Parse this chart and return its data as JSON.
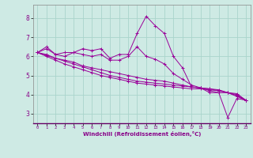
{
  "xlabel": "Windchill (Refroidissement éolien,°C)",
  "bg_color": "#ceeae4",
  "grid_color": "#aad4cc",
  "line_color": "#990099",
  "xlim": [
    -0.5,
    23.5
  ],
  "ylim": [
    2.5,
    8.7
  ],
  "yticks": [
    3,
    4,
    5,
    6,
    7,
    8
  ],
  "xticks": [
    0,
    1,
    2,
    3,
    4,
    5,
    6,
    7,
    8,
    9,
    10,
    11,
    12,
    13,
    14,
    15,
    16,
    17,
    18,
    19,
    20,
    21,
    22,
    23
  ],
  "series": [
    [
      6.2,
      6.5,
      6.1,
      6.2,
      6.2,
      6.4,
      6.3,
      6.4,
      5.9,
      6.1,
      6.1,
      7.2,
      8.1,
      7.6,
      7.2,
      6.0,
      5.4,
      4.4,
      4.35,
      4.1,
      4.1,
      2.8,
      3.8,
      3.7
    ],
    [
      6.2,
      6.4,
      6.1,
      6.0,
      6.2,
      6.1,
      6.0,
      6.1,
      5.8,
      5.8,
      6.0,
      6.5,
      6.0,
      5.85,
      5.6,
      5.1,
      4.8,
      4.5,
      4.35,
      4.2,
      4.1,
      4.1,
      3.9,
      3.7
    ],
    [
      6.2,
      6.1,
      5.9,
      5.8,
      5.7,
      5.5,
      5.4,
      5.3,
      5.2,
      5.1,
      5.0,
      4.9,
      4.8,
      4.75,
      4.7,
      4.6,
      4.5,
      4.4,
      4.35,
      4.3,
      4.2,
      4.1,
      4.05,
      3.7
    ],
    [
      6.2,
      6.05,
      5.9,
      5.75,
      5.6,
      5.45,
      5.3,
      5.15,
      5.0,
      4.9,
      4.8,
      4.7,
      4.65,
      4.6,
      4.55,
      4.5,
      4.45,
      4.4,
      4.35,
      4.3,
      4.25,
      4.1,
      4.0,
      3.7
    ],
    [
      6.2,
      6.0,
      5.8,
      5.6,
      5.45,
      5.3,
      5.15,
      5.0,
      4.9,
      4.8,
      4.7,
      4.6,
      4.55,
      4.5,
      4.45,
      4.4,
      4.35,
      4.3,
      4.3,
      4.25,
      4.2,
      4.1,
      3.95,
      3.7
    ]
  ]
}
